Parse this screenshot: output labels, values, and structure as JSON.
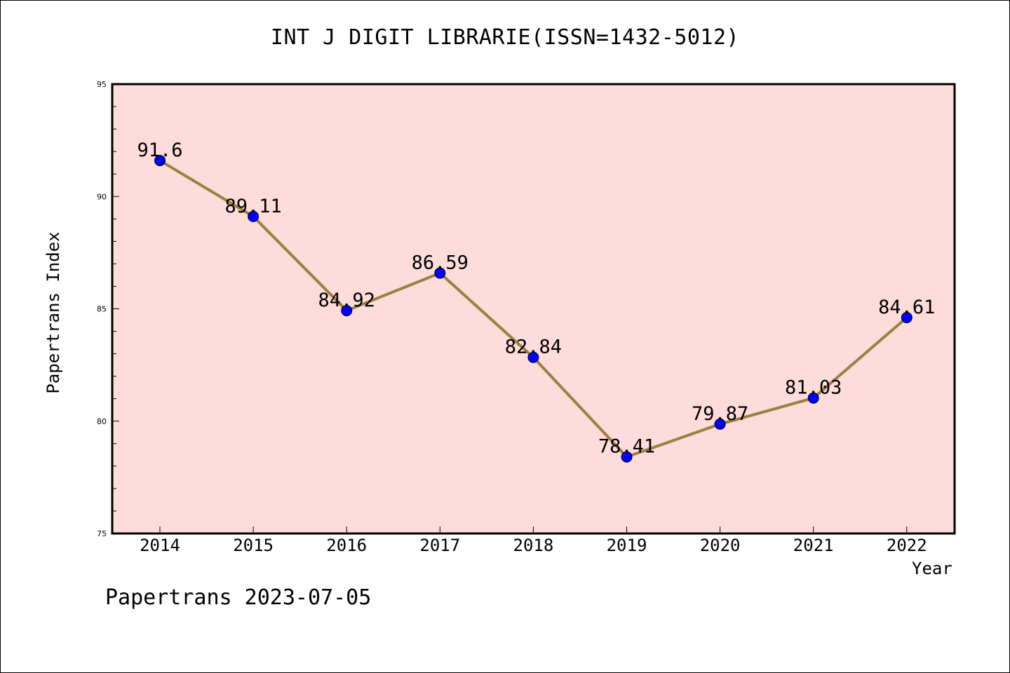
{
  "chart_data": {
    "type": "line",
    "title": "INT J DIGIT LIBRARIE(ISSN=1432-5012)",
    "xlabel": "Year",
    "ylabel": "Papertrans Index",
    "x": [
      "2014",
      "2015",
      "2016",
      "2017",
      "2018",
      "2019",
      "2020",
      "2021",
      "2022"
    ],
    "series": [
      {
        "values": [
          91.6,
          89.11,
          84.92,
          86.59,
          82.84,
          78.41,
          79.87,
          81.03,
          84.61
        ],
        "labels": [
          "91.6",
          "89.11",
          "84.92",
          "86.59",
          "82.84",
          "78.41",
          "79.87",
          "81.03",
          "84.61"
        ]
      }
    ],
    "ylim": [
      75,
      95
    ],
    "yticks": [
      "75",
      "80",
      "85",
      "90",
      "95"
    ],
    "grid": false,
    "colors": {
      "plot_background": "#fddcdb",
      "line": "#9b8040",
      "marker": "#0000ff"
    }
  },
  "footer": "Papertrans 2023-07-05"
}
